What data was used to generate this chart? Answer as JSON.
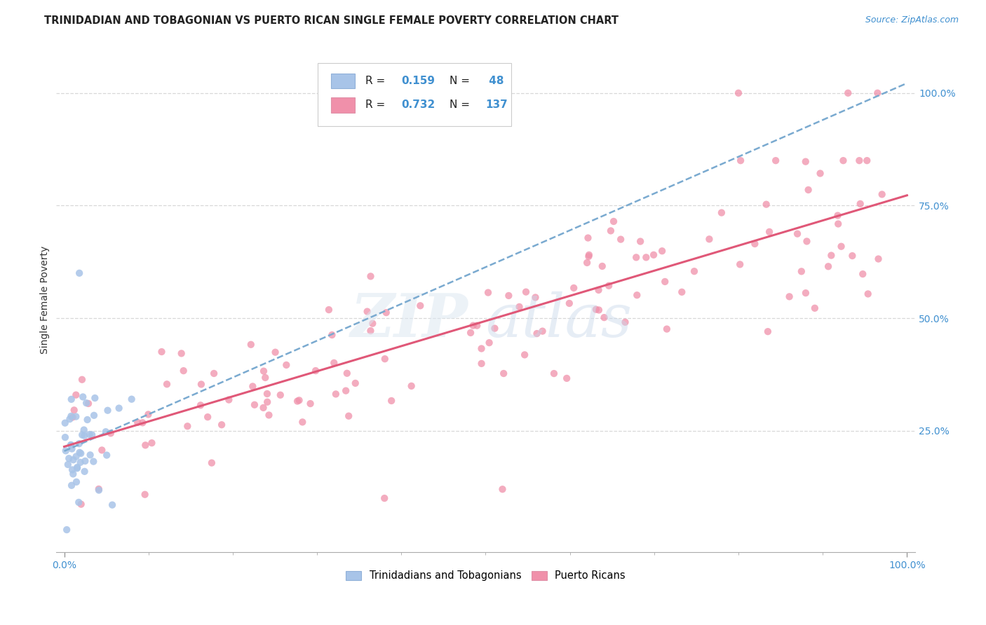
{
  "title": "TRINIDADIAN AND TOBAGONIAN VS PUERTO RICAN SINGLE FEMALE POVERTY CORRELATION CHART",
  "source": "Source: ZipAtlas.com",
  "ylabel": "Single Female Poverty",
  "legend_r1": "0.159",
  "legend_n1": "48",
  "legend_r2": "0.732",
  "legend_n2": "137",
  "tt_color": "#a8c4e8",
  "pr_color": "#f090aa",
  "tt_line_color": "#7aaad0",
  "pr_line_color": "#e05878",
  "background_color": "#ffffff",
  "grid_color": "#d8d8d8",
  "axis_color": "#4090d0",
  "title_color": "#222222",
  "seed": 42,
  "tt_n": 48,
  "pr_n": 137
}
